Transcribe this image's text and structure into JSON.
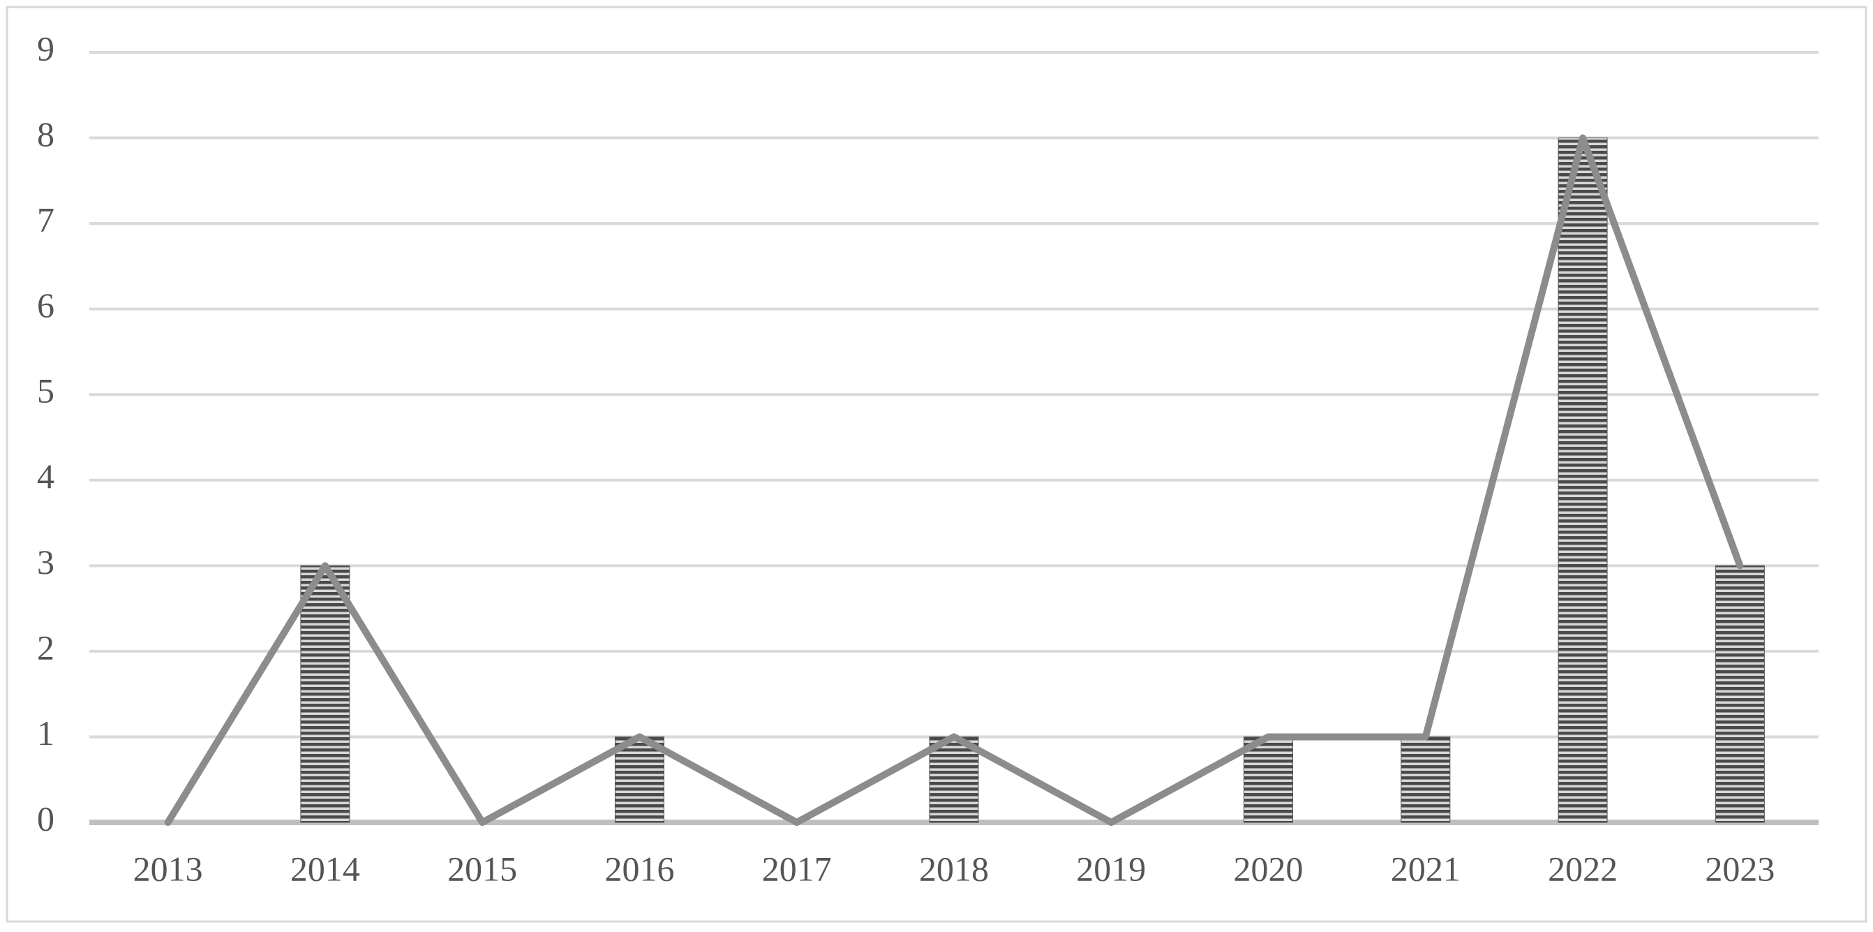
{
  "chart_data": {
    "type": "bar-line",
    "categories": [
      "2013",
      "2014",
      "2015",
      "2016",
      "2017",
      "2018",
      "2019",
      "2020",
      "2021",
      "2022",
      "2023"
    ],
    "series": [
      {
        "type": "bar",
        "color": "#555555",
        "values": [
          0,
          3,
          0,
          1,
          0,
          1,
          0,
          1,
          1,
          8,
          3
        ]
      },
      {
        "type": "line",
        "color": "#8c8c8c",
        "values": [
          0,
          3,
          0,
          1,
          0,
          1,
          0,
          1,
          1,
          8,
          3
        ]
      }
    ],
    "ylim": [
      0,
      9
    ],
    "yticks": [
      0,
      1,
      2,
      3,
      4,
      5,
      6,
      7,
      8,
      9
    ],
    "grid": true
  }
}
